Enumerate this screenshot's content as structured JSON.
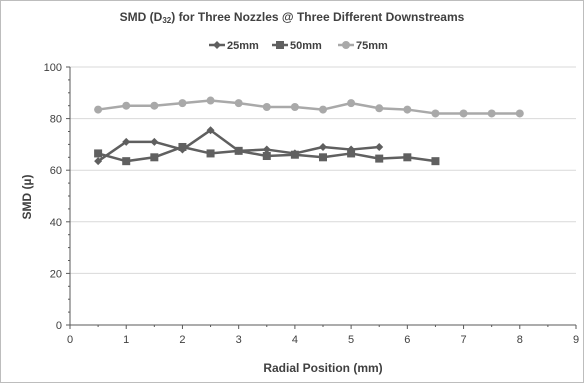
{
  "chart_data": {
    "type": "line",
    "title": "SMD (D32) for Three Nozzles @ Three Different Downstreams",
    "title_main": "SMD (D",
    "title_sub": "32",
    "title_rest": ") for Three Nozzles @ Three Different Downstreams",
    "xlabel": "Radial Position (mm)",
    "ylabel": "SMD (µ)",
    "xlim": [
      0,
      9
    ],
    "ylim": [
      0,
      100
    ],
    "x_ticks": [
      0,
      1,
      2,
      3,
      4,
      5,
      6,
      7,
      8,
      9
    ],
    "y_ticks": [
      0,
      20,
      40,
      60,
      80,
      100
    ],
    "grid": "horizontal",
    "legend_position": "top",
    "series": [
      {
        "name": "25mm",
        "color": "#5f5f5f",
        "marker": "diamond",
        "x": [
          0.5,
          1.0,
          1.5,
          2.0,
          2.5,
          3.0,
          3.5,
          4.0,
          4.5,
          5.0,
          5.5
        ],
        "y": [
          63.5,
          71.0,
          71.0,
          68.0,
          75.5,
          67.5,
          68.0,
          66.5,
          69.0,
          68.0,
          69.0
        ]
      },
      {
        "name": "50mm",
        "color": "#606060",
        "marker": "square",
        "x": [
          0.5,
          1.0,
          1.5,
          2.0,
          2.5,
          3.0,
          3.5,
          4.0,
          4.5,
          5.0,
          5.5,
          6.0,
          6.5
        ],
        "y": [
          66.5,
          63.5,
          65.0,
          69.0,
          66.5,
          67.5,
          65.5,
          66.0,
          65.0,
          66.5,
          64.5,
          65.0,
          63.5
        ]
      },
      {
        "name": "75mm",
        "color": "#a9a9a9",
        "marker": "circle",
        "x": [
          0.5,
          1.0,
          1.5,
          2.0,
          2.5,
          3.0,
          3.5,
          4.0,
          4.5,
          5.0,
          5.5,
          6.0,
          6.5,
          7.0,
          7.5,
          8.0
        ],
        "y": [
          83.5,
          85.0,
          85.0,
          86.0,
          87.0,
          86.0,
          84.5,
          84.5,
          83.5,
          86.0,
          84.0,
          83.5,
          82.0,
          82.0,
          82.0,
          82.0
        ]
      }
    ],
    "colors": {
      "grid": "#d9d9d9",
      "axis": "#595959",
      "text": "#404040"
    }
  }
}
